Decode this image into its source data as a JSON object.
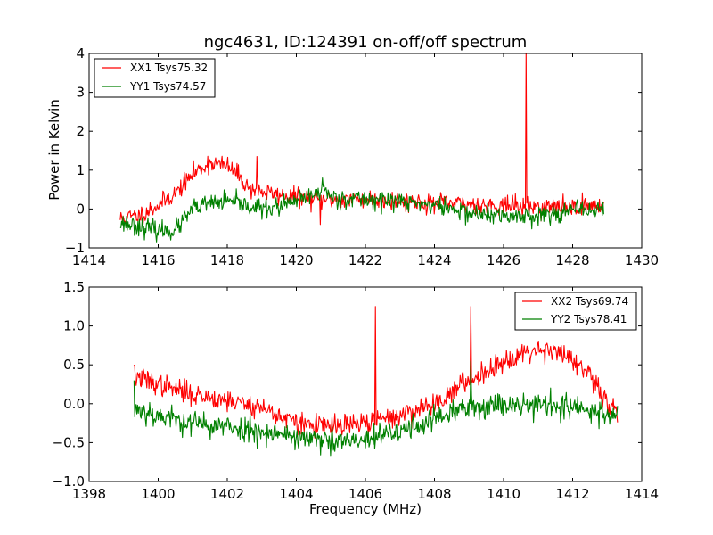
{
  "chart_data": [
    {
      "type": "line",
      "title": "ngc4631, ID:124391 on-off/off spectrum",
      "xlabel": "",
      "ylabel": "Power in Kelvin",
      "xlim": [
        1414,
        1430
      ],
      "ylim": [
        -1,
        4
      ],
      "xticks": [
        1414,
        1416,
        1418,
        1420,
        1422,
        1424,
        1426,
        1428,
        1430
      ],
      "yticks": [
        -1,
        0,
        1,
        2,
        3,
        4
      ],
      "xtick_labels": [
        "1414",
        "1416",
        "1418",
        "1420",
        "1422",
        "1424",
        "1426",
        "1428",
        "1430"
      ],
      "ytick_labels": [
        "−1",
        "0",
        "1",
        "2",
        "3",
        "4"
      ],
      "legend_position": "top-left",
      "x_range": [
        1414.9,
        1428.9
      ],
      "series": [
        {
          "name": "XX1 Tsys75.32",
          "color": "#ff0000",
          "noise": 0.12,
          "seed": 11,
          "profile": [
            [
              1414.9,
              -0.25
            ],
            [
              1415.5,
              -0.15
            ],
            [
              1416.0,
              0.1
            ],
            [
              1416.5,
              0.4
            ],
            [
              1417.0,
              0.9
            ],
            [
              1417.5,
              1.2
            ],
            [
              1418.0,
              1.1
            ],
            [
              1418.3,
              0.9
            ],
            [
              1418.6,
              0.55
            ],
            [
              1419.0,
              0.45
            ],
            [
              1419.5,
              0.35
            ],
            [
              1420.0,
              0.3
            ],
            [
              1420.5,
              0.25
            ],
            [
              1421.0,
              0.25
            ],
            [
              1422.0,
              0.25
            ],
            [
              1423.0,
              0.22
            ],
            [
              1424.0,
              0.15
            ],
            [
              1425.0,
              0.12
            ],
            [
              1426.0,
              0.1
            ],
            [
              1427.0,
              0.05
            ],
            [
              1428.0,
              0.05
            ],
            [
              1428.9,
              0.1
            ]
          ],
          "spikes": [
            [
              1418.85,
              1.35
            ],
            [
              1426.65,
              4.1
            ],
            [
              1420.7,
              -0.4
            ]
          ]
        },
        {
          "name": "YY1 Tsys74.57",
          "color": "#008000",
          "noise": 0.12,
          "seed": 23,
          "profile": [
            [
              1414.9,
              -0.35
            ],
            [
              1415.5,
              -0.45
            ],
            [
              1416.0,
              -0.55
            ],
            [
              1416.5,
              -0.55
            ],
            [
              1417.0,
              0.0
            ],
            [
              1417.5,
              0.15
            ],
            [
              1418.0,
              0.2
            ],
            [
              1418.5,
              0.1
            ],
            [
              1419.0,
              0.0
            ],
            [
              1419.5,
              0.05
            ],
            [
              1420.0,
              0.2
            ],
            [
              1420.5,
              0.35
            ],
            [
              1420.8,
              0.55
            ],
            [
              1421.0,
              0.3
            ],
            [
              1422.0,
              0.25
            ],
            [
              1423.0,
              0.2
            ],
            [
              1424.0,
              0.1
            ],
            [
              1425.0,
              -0.1
            ],
            [
              1426.0,
              -0.2
            ],
            [
              1427.0,
              -0.15
            ],
            [
              1428.0,
              -0.05
            ],
            [
              1428.9,
              0.0
            ]
          ],
          "spikes": [
            [
              1420.75,
              0.8
            ]
          ]
        }
      ]
    },
    {
      "type": "line",
      "title": "",
      "xlabel": "Frequency (MHz)",
      "ylabel": "",
      "xlim": [
        1398,
        1414
      ],
      "ylim": [
        -1.0,
        1.5
      ],
      "xticks": [
        1398,
        1400,
        1402,
        1404,
        1406,
        1408,
        1410,
        1412,
        1414
      ],
      "yticks": [
        -1.0,
        -0.5,
        0.0,
        0.5,
        1.0,
        1.5
      ],
      "xtick_labels": [
        "1398",
        "1400",
        "1402",
        "1404",
        "1406",
        "1408",
        "1410",
        "1412",
        "1414"
      ],
      "ytick_labels": [
        "−1.0",
        "−0.5",
        "0.0",
        "0.5",
        "1.0",
        "1.5"
      ],
      "legend_position": "top-right",
      "x_range": [
        1399.3,
        1413.3
      ],
      "series": [
        {
          "name": "XX2 Tsys69.74",
          "color": "#ff0000",
          "noise": 0.07,
          "seed": 37,
          "profile": [
            [
              1399.3,
              0.35
            ],
            [
              1400.0,
              0.25
            ],
            [
              1401.0,
              0.12
            ],
            [
              1402.0,
              0.05
            ],
            [
              1403.0,
              -0.05
            ],
            [
              1404.0,
              -0.25
            ],
            [
              1405.0,
              -0.3
            ],
            [
              1406.0,
              -0.25
            ],
            [
              1407.0,
              -0.15
            ],
            [
              1408.0,
              0.0
            ],
            [
              1408.5,
              0.15
            ],
            [
              1409.0,
              0.3
            ],
            [
              1410.0,
              0.55
            ],
            [
              1410.5,
              0.65
            ],
            [
              1411.0,
              0.7
            ],
            [
              1411.5,
              0.7
            ],
            [
              1412.0,
              0.55
            ],
            [
              1412.5,
              0.35
            ],
            [
              1413.0,
              0.0
            ],
            [
              1413.3,
              -0.1
            ]
          ],
          "spikes": [
            [
              1406.3,
              1.25
            ],
            [
              1409.05,
              1.25
            ],
            [
              1399.3,
              0.5
            ]
          ]
        },
        {
          "name": "YY2 Tsys78.41",
          "color": "#008000",
          "noise": 0.08,
          "seed": 53,
          "profile": [
            [
              1399.3,
              -0.05
            ],
            [
              1400.0,
              -0.15
            ],
            [
              1401.0,
              -0.25
            ],
            [
              1402.0,
              -0.3
            ],
            [
              1403.0,
              -0.35
            ],
            [
              1404.0,
              -0.42
            ],
            [
              1405.0,
              -0.5
            ],
            [
              1406.0,
              -0.48
            ],
            [
              1407.0,
              -0.35
            ],
            [
              1408.0,
              -0.2
            ],
            [
              1409.0,
              -0.05
            ],
            [
              1410.0,
              0.0
            ],
            [
              1411.0,
              0.0
            ],
            [
              1412.0,
              -0.05
            ],
            [
              1412.5,
              -0.1
            ],
            [
              1413.3,
              -0.15
            ]
          ],
          "spikes": [
            [
              1409.05,
              0.55
            ],
            [
              1399.3,
              0.3
            ]
          ]
        }
      ]
    }
  ]
}
